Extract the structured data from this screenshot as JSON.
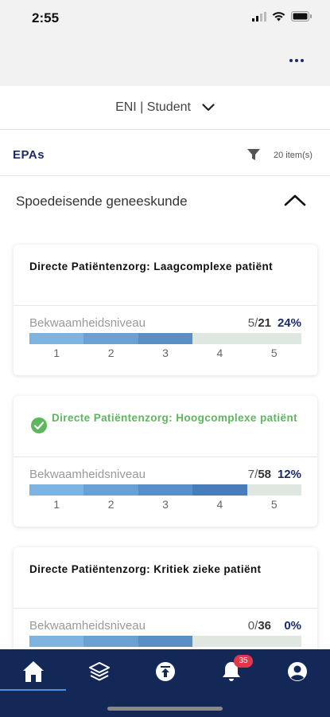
{
  "status": {
    "time": "2:55"
  },
  "role": {
    "label": "ENI | Student"
  },
  "epa": {
    "title": "EPAs",
    "count": "20 item(s)"
  },
  "section": {
    "title": "Spoedeisende geneeskunde"
  },
  "level_label": "Bekwaamheidsniveau",
  "scale": [
    "1",
    "2",
    "3",
    "4",
    "5"
  ],
  "cards": [
    {
      "title": "Directe Patiëntenzorg: Laagcomplexe patiënt",
      "completed": false,
      "count_done": "5",
      "count_total": "21",
      "percent": "24%",
      "fill_levels": 3
    },
    {
      "title": "Directe Patiëntenzorg: Hoogcomplexe patiënt",
      "completed": true,
      "count_done": "7",
      "count_total": "58",
      "percent": "12%",
      "fill_levels": 4
    },
    {
      "title": "Directe Patiëntenzorg: Kritiek zieke patiënt",
      "completed": false,
      "count_done": "0",
      "count_total": "36",
      "percent": "0%",
      "fill_levels": 3
    }
  ],
  "colors": {
    "primary": "#1b2a6b",
    "tabbar": "#132857",
    "success": "#5cb85c",
    "badge": "#e0384a",
    "seg1": "#7db3e0",
    "seg2": "#6aa0d2",
    "seg3": "#5a8ec7",
    "seg4": "#4a7cb8"
  },
  "tabs": {
    "home_icon": "home-icon",
    "layers_icon": "layers-icon",
    "upload_icon": "upload-icon",
    "bell_icon": "bell-icon",
    "profile_icon": "profile-icon",
    "notification_badge": "35"
  }
}
